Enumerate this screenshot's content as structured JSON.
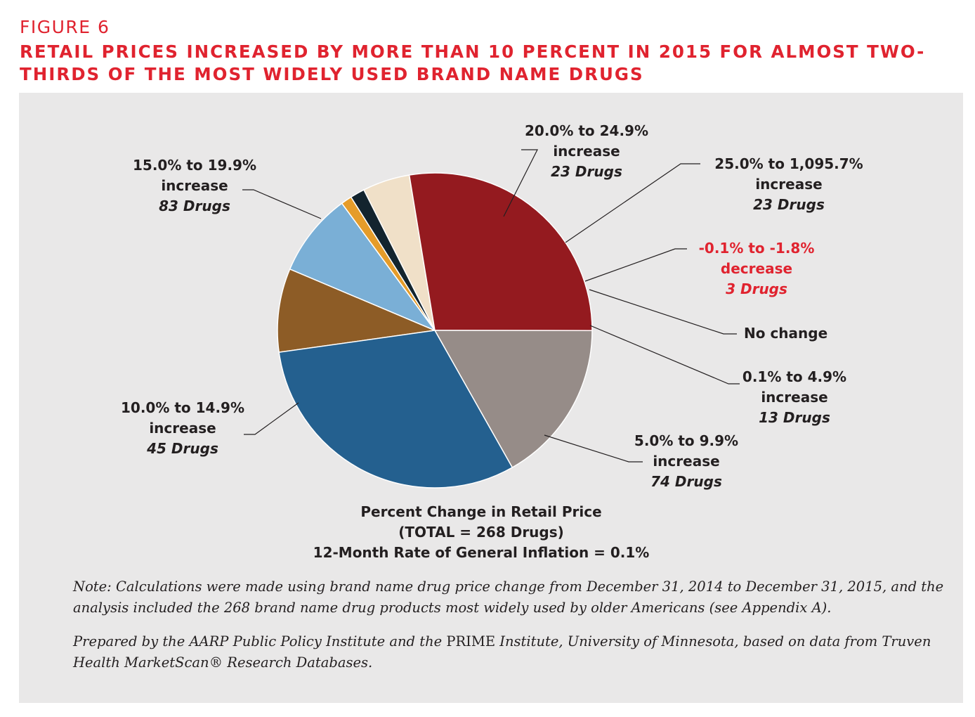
{
  "figure_label": "FIGURE 6",
  "title": "RETAIL PRICES INCREASED BY MORE THAN 10 PERCENT IN 2015 FOR ALMOST TWO-THIRDS OF THE MOST WIDELY USED BRAND NAME DRUGS",
  "caption": {
    "line1": "Percent Change in Retail Price",
    "line2": "(TOTAL = 268 Drugs)",
    "line3": "12-Month Rate of General Inflation = 0.1%"
  },
  "note": "Note: Calculations were made using brand name drug price change from December 31, 2014 to December 31, 2015, and the analysis included the 268 brand name drug products most widely used by older Americans (see Appendix A).",
  "source": {
    "before": "Prepared by the AARP Public Policy Institute and the ",
    "upright": "PRIME",
    "after": " Institute, University of Minnesota, based on data from Truven Health MarketScan® Research Databases."
  },
  "chart_data": {
    "type": "pie",
    "total": 268,
    "slices": [
      {
        "range": "20.0% to 24.9%",
        "change": "increase",
        "count_label": "23 Drugs",
        "value": 23,
        "color": "#8d5c26",
        "label_color": "#231f20"
      },
      {
        "range": "25.0% to 1,095.7%",
        "change": "increase",
        "count_label": "23 Drugs",
        "value": 23,
        "color": "#7aafd6",
        "label_color": "#231f20"
      },
      {
        "range": "-0.1% to -1.8%",
        "change": "decrease",
        "count_label": "3 Drugs",
        "value": 3,
        "color": "#e59c2a",
        "label_color": "#e0232f"
      },
      {
        "range": "No change",
        "change": "",
        "count_label": "",
        "value": 4,
        "color": "#13242e",
        "label_color": "#231f20"
      },
      {
        "range": "0.1% to 4.9%",
        "change": "increase",
        "count_label": "13 Drugs",
        "value": 13,
        "color": "#f0e0c8",
        "label_color": "#231f20"
      },
      {
        "range": "5.0% to 9.9%",
        "change": "increase",
        "count_label": "74 Drugs",
        "value": 74,
        "color": "#941a1f",
        "label_color": "#231f20"
      },
      {
        "range": "10.0% to 14.9%",
        "change": "increase",
        "count_label": "45 Drugs",
        "value": 45,
        "color": "#968c88",
        "label_color": "#231f20"
      },
      {
        "range": "15.0% to 19.9%",
        "change": "increase",
        "count_label": "83 Drugs",
        "value": 83,
        "color": "#24608f",
        "label_color": "#231f20"
      }
    ]
  }
}
